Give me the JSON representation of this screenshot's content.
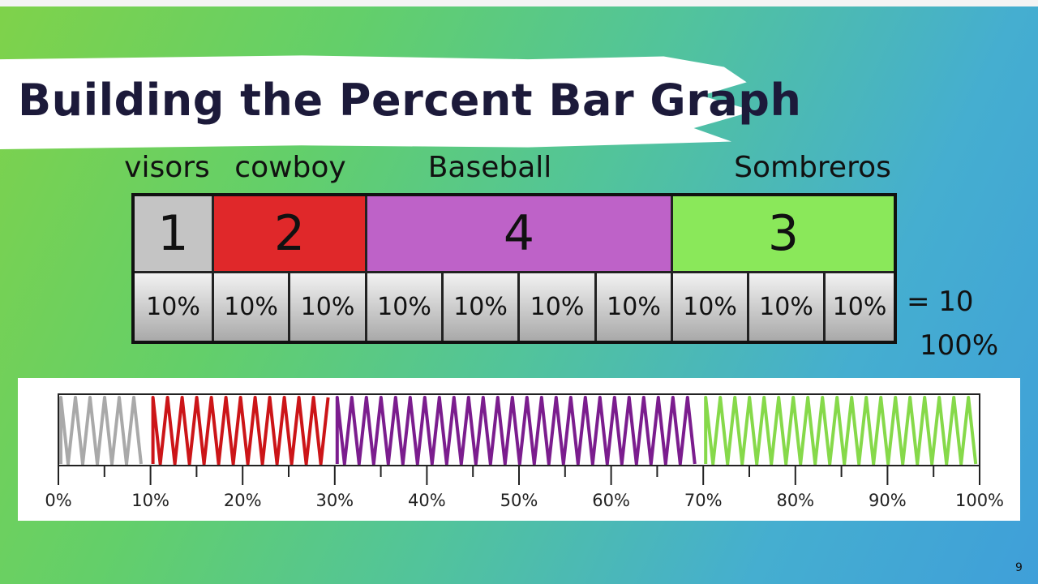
{
  "slide": {
    "title": "Building the Percent Bar Graph",
    "page_number": "9"
  },
  "categories": [
    {
      "label": "visors",
      "count": "1",
      "color": "#c4c4c4"
    },
    {
      "label": "cowboy",
      "count": "2",
      "color": "#e0282a"
    },
    {
      "label": "Baseball",
      "count": "4",
      "color": "#be62c8"
    },
    {
      "label": "Sombreros",
      "count": "3",
      "color": "#8ae85a"
    }
  ],
  "percent_cells": [
    "10%",
    "10%",
    "10%",
    "10%",
    "10%",
    "10%",
    "10%",
    "10%",
    "10%",
    "10%"
  ],
  "total_note": {
    "equals": "= 10",
    "total": "100%"
  },
  "chart_data": {
    "type": "bar",
    "orientation": "horizontal",
    "stacked": true,
    "segments": [
      {
        "start": 0,
        "end": 10,
        "color": "#a9a9a9"
      },
      {
        "start": 10,
        "end": 30,
        "color": "#cc1518"
      },
      {
        "start": 30,
        "end": 70,
        "color": "#7b1d8e"
      },
      {
        "start": 70,
        "end": 100,
        "color": "#86d94a"
      }
    ],
    "xlim": [
      0,
      100
    ],
    "ticks": [
      "0%",
      "10%",
      "20%",
      "30%",
      "40%",
      "50%",
      "60%",
      "70%",
      "80%",
      "90%",
      "100%"
    ]
  }
}
